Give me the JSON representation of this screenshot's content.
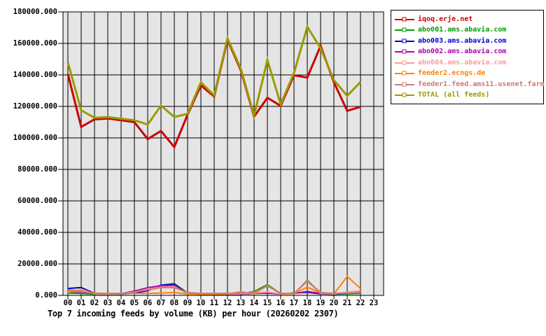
{
  "title": "Top 7 incoming feeds by volume (KB) per hour (20260202 2307)",
  "colors": {
    "plot_background": "#e5e5e5",
    "grid": "#000000",
    "border": "#000000",
    "page_background": "#ffffff",
    "legend_border": "#000000"
  },
  "chart_data": {
    "type": "line",
    "title": "Top 7 incoming feeds by volume (KB) per hour (20260202 2307)",
    "xlabel": "",
    "ylabel": "",
    "ylim": [
      0,
      180000
    ],
    "ytick_step": 20000,
    "grid": true,
    "legend_position": "right-outside",
    "x_tick_labels": [
      "00",
      "01",
      "02",
      "03",
      "04",
      "05",
      "06",
      "07",
      "08",
      "09",
      "10",
      "11",
      "12",
      "13",
      "14",
      "15",
      "16",
      "17",
      "18",
      "19",
      "20",
      "21",
      "22",
      "23"
    ],
    "y_tick_labels": [
      "0.000",
      "20000.000",
      "40000.000",
      "60000.000",
      "80000.000",
      "100000.000",
      "120000.000",
      "140000.000",
      "160000.000",
      "180000.000"
    ],
    "note": "data series span hours 00 through 22",
    "series": [
      {
        "name": "iqoq.erje.net",
        "color": "#cc0000",
        "width": 3,
        "values": [
          140500,
          107000,
          111800,
          112300,
          111200,
          110000,
          99300,
          104400,
          94200,
          114800,
          133300,
          126300,
          162300,
          143000,
          113500,
          125500,
          120300,
          139800,
          138300,
          158500,
          135300,
          117200,
          119700
        ]
      },
      {
        "name": "abo001.ams.abavia.com",
        "color": "#00a000",
        "width": 2,
        "values": [
          1500,
          1200,
          800,
          800,
          800,
          1800,
          3500,
          6500,
          7500,
          1500,
          800,
          800,
          900,
          1000,
          2500,
          6800,
          1200,
          1000,
          9600,
          1500,
          800,
          1000,
          1200
        ]
      },
      {
        "name": "abo003.ams.abavia.com",
        "color": "#0000cc",
        "width": 2,
        "values": [
          4400,
          5000,
          1300,
          1000,
          1000,
          1500,
          3000,
          6500,
          7000,
          1200,
          700,
          700,
          800,
          800,
          1200,
          1500,
          900,
          1500,
          2000,
          1000,
          700,
          1500,
          2500
        ]
      },
      {
        "name": "abo002.ams.abavia.com",
        "color": "#b000b0",
        "width": 2,
        "values": [
          2500,
          2200,
          1200,
          1000,
          1100,
          2700,
          4900,
          6200,
          6300,
          1300,
          900,
          900,
          1000,
          1100,
          1300,
          1800,
          1000,
          1200,
          2500,
          1200,
          1000,
          1800,
          2800
        ]
      },
      {
        "name": "abo004.ams.abavia.com",
        "color": "#ff9999",
        "width": 2,
        "values": [
          2000,
          4000,
          1000,
          900,
          1000,
          2200,
          4000,
          5300,
          5500,
          1100,
          800,
          800,
          900,
          1000,
          1500,
          2200,
          1000,
          1100,
          8800,
          1300,
          900,
          2000,
          3000
        ]
      },
      {
        "name": "feeder2.ecngs.de",
        "color": "#ff8000",
        "width": 2,
        "values": [
          3600,
          2700,
          1500,
          1200,
          1300,
          1300,
          1300,
          1500,
          1800,
          900,
          800,
          800,
          900,
          2300,
          1000,
          6300,
          1000,
          1100,
          5300,
          1500,
          900,
          12000,
          4400
        ]
      },
      {
        "name": "feeder1.feed.ams11.usenet.farm",
        "color": "#cc7a7a",
        "width": 2,
        "values": [
          2700,
          2400,
          1300,
          1200,
          1200,
          2200,
          3500,
          5000,
          4900,
          1800,
          1300,
          1300,
          1300,
          1400,
          2000,
          5800,
          1400,
          1300,
          9200,
          1800,
          1300,
          1500,
          1800
        ]
      },
      {
        "name": "TOTAL (all feeds)",
        "color": "#9a9a00",
        "width": 3,
        "values": [
          147800,
          117500,
          112800,
          113200,
          112200,
          111200,
          108500,
          120500,
          113300,
          115300,
          135300,
          127000,
          163200,
          144000,
          114200,
          149500,
          121300,
          141300,
          170500,
          157000,
          136700,
          126700,
          135500
        ]
      }
    ]
  }
}
